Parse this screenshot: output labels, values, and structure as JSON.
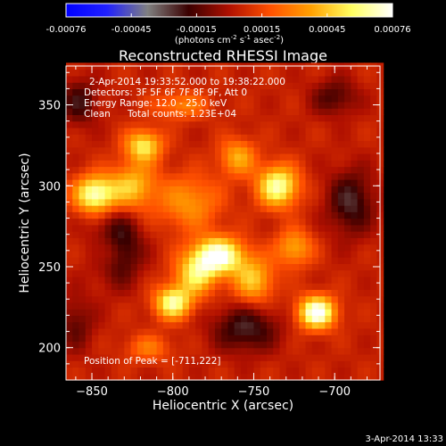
{
  "chart_data": {
    "type": "heatmap",
    "title": "Reconstructed RHESSI Image",
    "xlabel": "Heliocentric X (arcsec)",
    "ylabel": "Heliocentric Y (arcsec)",
    "xlim": [
      -866,
      -672
    ],
    "ylim": [
      180,
      374
    ],
    "x_ticks": [
      -850,
      -800,
      -750,
      -700
    ],
    "y_ticks": [
      200,
      250,
      300,
      350
    ],
    "colorbar": {
      "min": -0.00076,
      "max": 0.00076,
      "tick_labels": [
        "-0.00076",
        "-0.00045",
        "-0.00015",
        "0.00015",
        "0.00045",
        "0.00076"
      ],
      "unit_label": "(photons cm-2 s-1 asec-2)",
      "colors": [
        "#0000ff",
        "#2020ff",
        "#808080",
        "#3a0000",
        "#b01000",
        "#ff5000",
        "#ffa000",
        "#ffff60",
        "#ffffff"
      ]
    },
    "annotations": [
      "2-Apr-2014 19:33:52.000 to 19:38:22.000",
      "Detectors: 3F 5F 6F 7F 8F 9F, Att 0",
      "Energy Range: 12.0 - 25.0 keV",
      "Clean",
      "Total counts: 1.23E+04",
      "Position of Peak = [-711,222]"
    ],
    "footer": "3-Apr-2014 13:33",
    "sources": [
      {
        "x": -848,
        "y": 295,
        "amp": 0.00065,
        "sx": 9,
        "sy": 8
      },
      {
        "x": -818,
        "y": 325,
        "amp": 0.0005,
        "sx": 8,
        "sy": 7
      },
      {
        "x": -825,
        "y": 300,
        "amp": 0.0004,
        "sx": 10,
        "sy": 10
      },
      {
        "x": -772,
        "y": 257,
        "amp": 0.00072,
        "sx": 11,
        "sy": 8
      },
      {
        "x": -800,
        "y": 228,
        "amp": 0.0006,
        "sx": 8,
        "sy": 7
      },
      {
        "x": -786,
        "y": 245,
        "amp": 0.00045,
        "sx": 9,
        "sy": 9
      },
      {
        "x": -750,
        "y": 242,
        "amp": 0.0004,
        "sx": 9,
        "sy": 10
      },
      {
        "x": -735,
        "y": 300,
        "amp": 0.00062,
        "sx": 9,
        "sy": 9
      },
      {
        "x": -760,
        "y": 318,
        "amp": 0.00035,
        "sx": 8,
        "sy": 8
      },
      {
        "x": -711,
        "y": 222,
        "amp": 0.00076,
        "sx": 8,
        "sy": 7
      },
      {
        "x": -725,
        "y": 262,
        "amp": 0.00035,
        "sx": 8,
        "sy": 8
      },
      {
        "x": -790,
        "y": 290,
        "amp": 0.0003,
        "sx": 14,
        "sy": 12
      },
      {
        "x": -840,
        "y": 260,
        "amp": 0.00028,
        "sx": 7,
        "sy": 8
      },
      {
        "x": -795,
        "y": 350,
        "amp": 0.00025,
        "sx": 12,
        "sy": 6
      },
      {
        "x": -815,
        "y": 200,
        "amp": 0.00022,
        "sx": 10,
        "sy": 6
      },
      {
        "x": -835,
        "y": 262,
        "amp": -0.0004,
        "sx": 10,
        "sy": 14
      },
      {
        "x": -755,
        "y": 212,
        "amp": -0.0003,
        "sx": 14,
        "sy": 10
      },
      {
        "x": -690,
        "y": 290,
        "amp": -0.0003,
        "sx": 10,
        "sy": 14
      },
      {
        "x": -858,
        "y": 352,
        "amp": -0.00025,
        "sx": 8,
        "sy": 10
      },
      {
        "x": -700,
        "y": 355,
        "amp": -0.00022,
        "sx": 10,
        "sy": 8
      },
      {
        "x": -860,
        "y": 215,
        "amp": -0.00018,
        "sx": 8,
        "sy": 12
      }
    ]
  }
}
